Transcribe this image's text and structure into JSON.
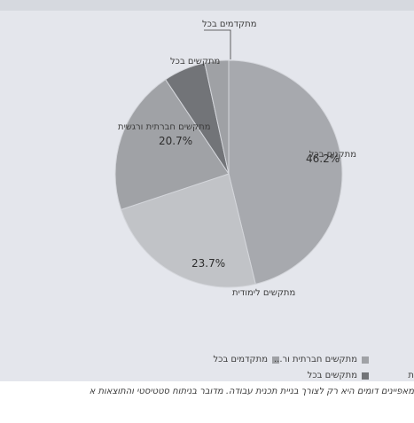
{
  "chart_data": {
    "type": "pie",
    "title": "",
    "categories": [
      "מתקנים בכל",
      "מתקשים לימודית",
      "מתקשים חברתית ורגשית",
      "מתקשים בכל",
      "מתקדמים בכל"
    ],
    "values": [
      46.2,
      23.7,
      20.7,
      6.0,
      3.4
    ],
    "data_labels": [
      "46.2%",
      "23.7%",
      "20.7%",
      "",
      ""
    ],
    "colors": [
      "#a7a9ae",
      "#c1c3c7",
      "#a0a2a6",
      "#727478",
      "#9fa1a5"
    ],
    "legend_position": "bottom",
    "legend": [
      {
        "label": "מתקדמים בכל",
        "color": "#9fa1a5"
      },
      {
        "label": "מתקשים חברתית ור...",
        "color": "#a0a2a6"
      },
      {
        "label": "מתקשים בכל",
        "color": "#727478"
      },
      {
        "label": "ת",
        "color": ""
      }
    ]
  },
  "caption": "מאפיינים דומים היא רק לצורך בניית תכנית עבודה. מדובר בניתוח סטטיסטי והתוצאות א"
}
